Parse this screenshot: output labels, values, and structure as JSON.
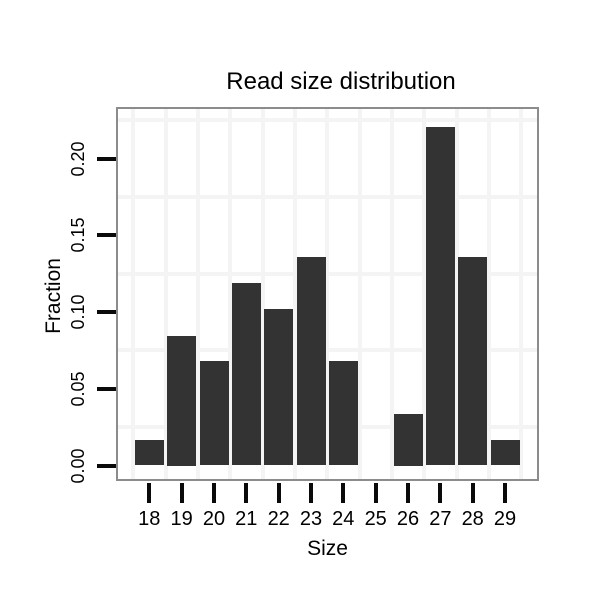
{
  "chart_data": {
    "type": "bar",
    "title": "Read size distribution",
    "xlabel": "Size",
    "ylabel": "Fraction",
    "categories": [
      "18",
      "19",
      "20",
      "21",
      "22",
      "23",
      "24",
      "25",
      "26",
      "27",
      "28",
      "29"
    ],
    "values": [
      0.0169,
      0.0847,
      0.0678,
      0.1186,
      0.1017,
      0.1356,
      0.0678,
      0,
      0.0339,
      0.2203,
      0.1356,
      0.0169
    ],
    "y_ticks": [
      {
        "label": "0.00",
        "value": 0.0
      },
      {
        "label": "0.05",
        "value": 0.05
      },
      {
        "label": "0.10",
        "value": 0.1
      },
      {
        "label": "0.15",
        "value": 0.15
      },
      {
        "label": "0.20",
        "value": 0.2
      }
    ],
    "ylim": [
      -0.01,
      0.2335
    ],
    "grid": "on",
    "h_gridline_values": [
      0.025,
      0.075,
      0.125,
      0.175,
      0.225
    ],
    "legend": "none"
  },
  "colors": {
    "bar_fill": "#333333",
    "plot_border": "#8c8c8c",
    "gridline": "#f4f4f4",
    "tick": "#0a0a0a",
    "text": "#000000",
    "background": "#ffffff"
  }
}
